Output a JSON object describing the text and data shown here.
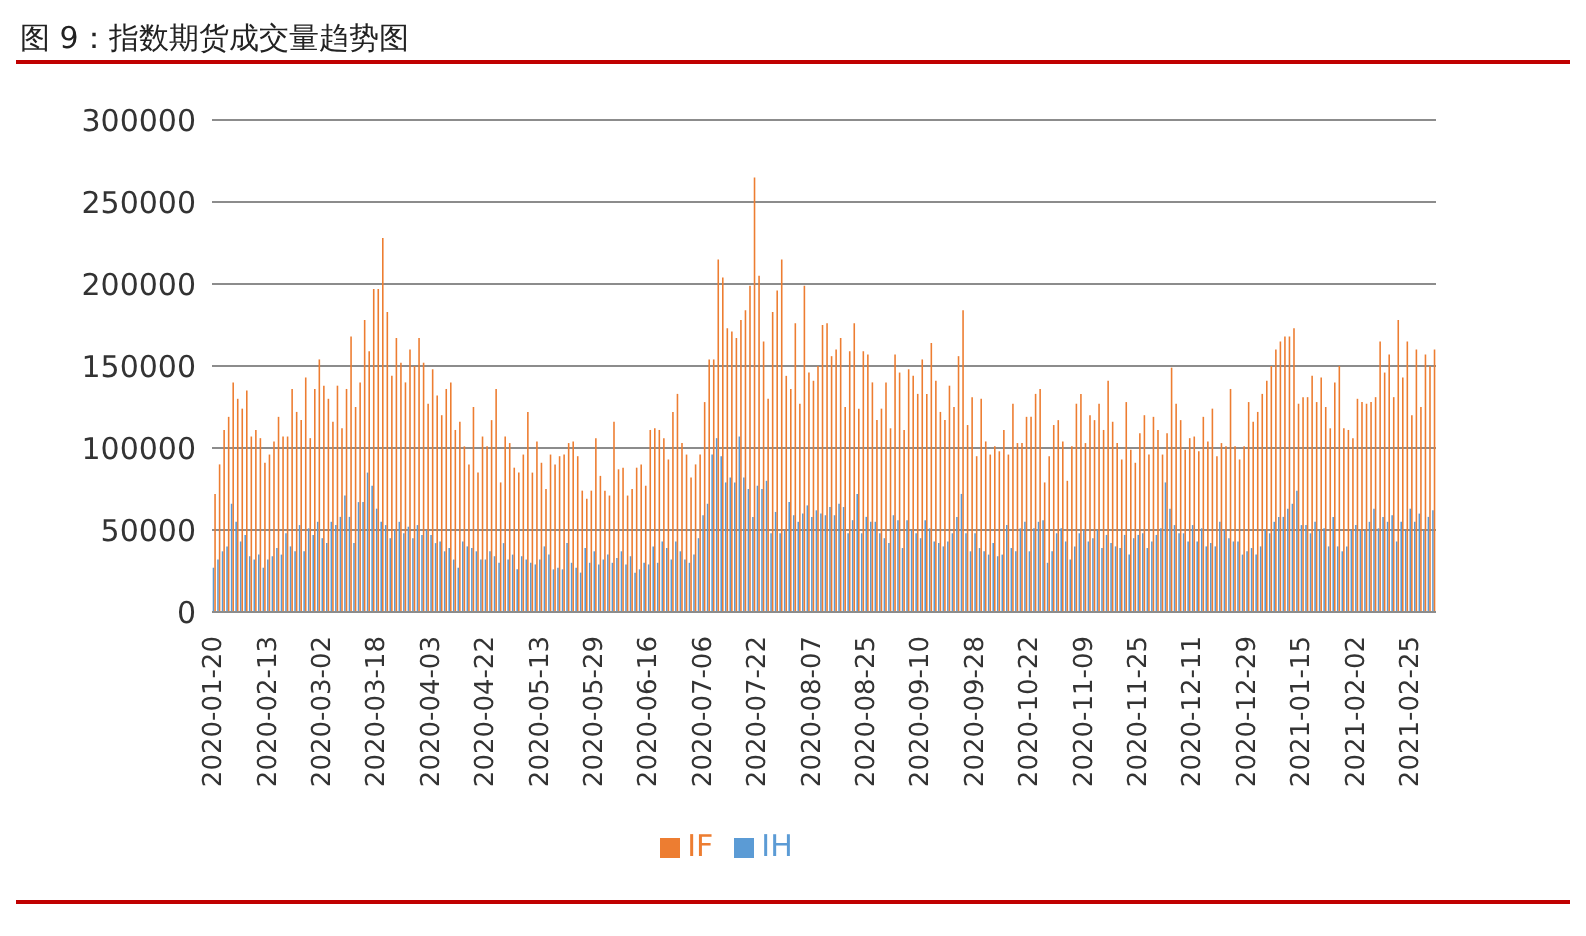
{
  "chart_data": {
    "type": "bar",
    "title": "图 9：指数期货成交量趋势图",
    "categories": [
      "2020-01-20",
      null,
      null,
      null,
      null,
      null,
      null,
      null,
      null,
      null,
      null,
      null,
      "2020-02-13",
      null,
      null,
      null,
      null,
      null,
      null,
      null,
      null,
      null,
      null,
      null,
      "2020-03-02",
      null,
      null,
      null,
      null,
      null,
      null,
      null,
      null,
      null,
      null,
      null,
      "2020-03-18",
      null,
      null,
      null,
      null,
      null,
      null,
      null,
      null,
      null,
      null,
      null,
      "2020-04-03",
      null,
      null,
      null,
      null,
      null,
      null,
      null,
      null,
      null,
      null,
      null,
      "2020-04-22",
      null,
      null,
      null,
      null,
      null,
      null,
      null,
      null,
      null,
      null,
      null,
      "2020-05-13",
      null,
      null,
      null,
      null,
      null,
      null,
      null,
      null,
      null,
      null,
      null,
      "2020-05-29",
      null,
      null,
      null,
      null,
      null,
      null,
      null,
      null,
      null,
      null,
      null,
      "2020-06-16",
      null,
      null,
      null,
      null,
      null,
      null,
      null,
      null,
      null,
      null,
      null,
      "2020-07-06",
      null,
      null,
      null,
      null,
      null,
      null,
      null,
      null,
      null,
      null,
      null,
      "2020-07-22",
      null,
      null,
      null,
      null,
      null,
      null,
      null,
      null,
      null,
      null,
      null,
      "2020-08-07",
      null,
      null,
      null,
      null,
      null,
      null,
      null,
      null,
      null,
      null,
      null,
      "2020-08-25",
      null,
      null,
      null,
      null,
      null,
      null,
      null,
      null,
      null,
      null,
      null,
      "2020-09-10",
      null,
      null,
      null,
      null,
      null,
      null,
      null,
      null,
      null,
      null,
      null,
      "2020-09-28",
      null,
      null,
      null,
      null,
      null,
      null,
      null,
      null,
      null,
      null,
      null,
      "2020-10-22",
      null,
      null,
      null,
      null,
      null,
      null,
      null,
      null,
      null,
      null,
      null,
      "2020-11-09",
      null,
      null,
      null,
      null,
      null,
      null,
      null,
      null,
      null,
      null,
      null,
      "2020-11-25",
      null,
      null,
      null,
      null,
      null,
      null,
      null,
      null,
      null,
      null,
      null,
      "2020-12-11",
      null,
      null,
      null,
      null,
      null,
      null,
      null,
      null,
      null,
      null,
      null,
      "2020-12-29",
      null,
      null,
      null,
      null,
      null,
      null,
      null,
      null,
      null,
      null,
      null,
      "2021-01-15",
      null,
      null,
      null,
      null,
      null,
      null,
      null,
      null,
      null,
      null,
      null,
      "2021-02-02",
      null,
      null,
      null,
      null,
      null,
      null,
      null,
      null,
      null,
      null,
      null,
      "2021-02-25",
      null,
      null,
      null,
      null,
      null
    ],
    "series": [
      {
        "name": "IH",
        "color": "#5b9bd5",
        "values": [
          27000,
          32000,
          37000,
          40000,
          66000,
          55000,
          43000,
          47000,
          34000,
          32000,
          35000,
          27000,
          32000,
          34000,
          39000,
          35000,
          48000,
          40000,
          37000,
          53000,
          37000,
          51000,
          47000,
          55000,
          45000,
          42000,
          55000,
          53000,
          58000,
          71000,
          58000,
          42000,
          67000,
          67000,
          85000,
          77000,
          63000,
          55000,
          53000,
          45000,
          50000,
          55000,
          48000,
          52000,
          45000,
          53000,
          47000,
          50000,
          47000,
          42000,
          43000,
          37000,
          39000,
          32000,
          27000,
          43000,
          40000,
          39000,
          37000,
          32000,
          32000,
          37000,
          34000,
          30000,
          42000,
          32000,
          35000,
          26000,
          34000,
          32000,
          30000,
          29000,
          32000,
          40000,
          35000,
          26000,
          27000,
          26000,
          42000,
          30000,
          27000,
          24000,
          39000,
          30000,
          37000,
          29000,
          32000,
          35000,
          30000,
          33000,
          37000,
          29000,
          34000,
          24000,
          26000,
          30000,
          29000,
          40000,
          30000,
          43000,
          39000,
          32000,
          43000,
          37000,
          32000,
          30000,
          35000,
          45000,
          59000,
          66000,
          96000,
          106000,
          95000,
          79000,
          82000,
          79000,
          107000,
          82000,
          75000,
          58000,
          77000,
          75000,
          80000,
          48000,
          61000,
          48000,
          50000,
          67000,
          59000,
          55000,
          60000,
          65000,
          58000,
          62000,
          60000,
          59000,
          64000,
          59000,
          66000,
          64000,
          48000,
          56000,
          72000,
          48000,
          58000,
          55000,
          55000,
          48000,
          45000,
          42000,
          59000,
          56000,
          39000,
          56000,
          50000,
          48000,
          45000,
          56000,
          51000,
          43000,
          42000,
          40000,
          43000,
          48000,
          58000,
          72000,
          48000,
          37000,
          48000,
          39000,
          37000,
          35000,
          42000,
          34000,
          35000,
          53000,
          39000,
          37000,
          51000,
          55000,
          37000,
          51000,
          55000,
          56000,
          30000,
          37000,
          48000,
          51000,
          43000,
          32000,
          40000,
          48000,
          50000,
          43000,
          45000,
          50000,
          39000,
          47000,
          42000,
          40000,
          39000,
          47000,
          35000,
          45000,
          47000,
          48000,
          39000,
          43000,
          47000,
          51000,
          79000,
          63000,
          53000,
          48000,
          48000,
          43000,
          53000,
          43000,
          51000,
          40000,
          42000,
          40000,
          55000,
          50000,
          45000,
          43000,
          43000,
          35000,
          37000,
          39000,
          35000,
          40000,
          50000,
          48000,
          55000,
          58000,
          58000,
          63000,
          66000,
          74000,
          53000,
          53000,
          48000,
          55000,
          50000,
          51000,
          40000,
          58000,
          40000,
          37000,
          40000,
          50000,
          53000,
          50000,
          50000,
          55000,
          63000,
          51000,
          58000,
          55000,
          59000,
          43000,
          55000,
          50000,
          63000,
          55000,
          60000,
          50000,
          58000,
          62000
        ]
      },
      {
        "name": "IF",
        "color": "#ed7d31",
        "values": [
          72000,
          90000,
          111000,
          119000,
          140000,
          130000,
          124000,
          135000,
          107000,
          111000,
          106000,
          91000,
          96000,
          104000,
          119000,
          107000,
          107000,
          136000,
          122000,
          117000,
          143000,
          106000,
          136000,
          154000,
          138000,
          130000,
          116000,
          138000,
          112000,
          136000,
          168000,
          125000,
          140000,
          178000,
          159000,
          197000,
          197000,
          228000,
          183000,
          144000,
          167000,
          152000,
          140000,
          160000,
          150000,
          167000,
          152000,
          127000,
          148000,
          132000,
          120000,
          136000,
          140000,
          111000,
          116000,
          101000,
          90000,
          125000,
          85000,
          107000,
          101000,
          117000,
          136000,
          79000,
          107000,
          103000,
          88000,
          85000,
          96000,
          122000,
          85000,
          104000,
          91000,
          75000,
          96000,
          90000,
          95000,
          96000,
          103000,
          104000,
          95000,
          74000,
          69000,
          74000,
          106000,
          83000,
          74000,
          71000,
          116000,
          87000,
          88000,
          71000,
          75000,
          88000,
          90000,
          77000,
          111000,
          112000,
          111000,
          106000,
          93000,
          122000,
          133000,
          103000,
          96000,
          82000,
          90000,
          96000,
          128000,
          154000,
          154000,
          215000,
          204000,
          173000,
          171000,
          167000,
          178000,
          184000,
          199000,
          265000,
          205000,
          165000,
          130000,
          183000,
          196000,
          215000,
          144000,
          136000,
          176000,
          127000,
          199000,
          146000,
          141000,
          150000,
          175000,
          176000,
          156000,
          160000,
          167000,
          125000,
          159000,
          176000,
          124000,
          159000,
          157000,
          140000,
          117000,
          124000,
          140000,
          112000,
          157000,
          146000,
          111000,
          148000,
          144000,
          133000,
          154000,
          133000,
          164000,
          141000,
          122000,
          117000,
          138000,
          125000,
          156000,
          184000,
          114000,
          131000,
          95000,
          130000,
          104000,
          96000,
          101000,
          98000,
          111000,
          96000,
          127000,
          103000,
          103000,
          119000,
          119000,
          133000,
          136000,
          79000,
          95000,
          114000,
          117000,
          104000,
          80000,
          101000,
          127000,
          133000,
          103000,
          120000,
          117000,
          127000,
          111000,
          141000,
          116000,
          103000,
          93000,
          128000,
          99000,
          91000,
          109000,
          120000,
          96000,
          119000,
          111000,
          96000,
          109000,
          149000,
          127000,
          117000,
          99000,
          106000,
          107000,
          98000,
          119000,
          104000,
          124000,
          95000,
          103000,
          101000,
          136000,
          101000,
          93000,
          101000,
          128000,
          116000,
          122000,
          133000,
          141000,
          150000,
          160000,
          165000,
          168000,
          168000,
          173000,
          127000,
          131000,
          131000,
          144000,
          128000,
          143000,
          125000,
          112000,
          140000,
          150000,
          112000,
          111000,
          106000,
          130000,
          128000,
          127000,
          128000,
          131000,
          165000,
          146000,
          157000,
          131000,
          178000,
          143000,
          165000,
          120000,
          160000,
          125000,
          157000,
          150000,
          160000
        ]
      }
    ],
    "ylim": [
      0,
      300000
    ],
    "yticks": [
      0,
      50000,
      100000,
      150000,
      200000,
      250000,
      300000
    ],
    "grid": "y",
    "legend": "bottom"
  }
}
